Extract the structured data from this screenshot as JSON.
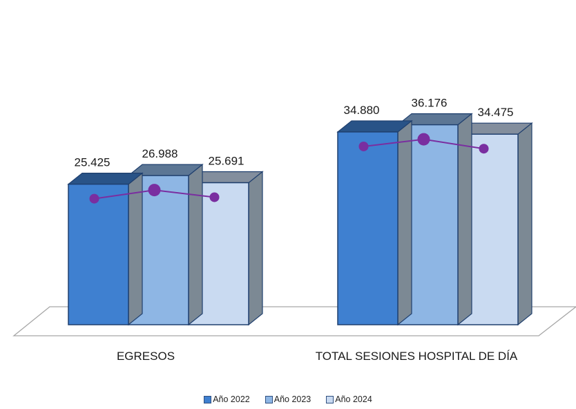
{
  "chart_data": {
    "type": "bar",
    "categories": [
      "EGRESOS",
      "TOTAL SESIONES HOSPITAL DE DÍA"
    ],
    "series": [
      {
        "name": "Año 2022",
        "values": [
          25425,
          34880
        ],
        "labels": [
          "25.425",
          "34.880"
        ],
        "color": "#3f80d0"
      },
      {
        "name": "Año 2023",
        "values": [
          26988,
          36176
        ],
        "labels": [
          "26.988",
          "36.176"
        ],
        "color": "#8eb6e4"
      },
      {
        "name": "Año 2024",
        "values": [
          25691,
          34475
        ],
        "labels": [
          "25.691",
          "34.475"
        ],
        "color": "#c9daf1"
      }
    ],
    "line_overlay_color": "#7a2ea0",
    "grid": false,
    "legend_position": "bottom",
    "bar_style": "3d"
  }
}
